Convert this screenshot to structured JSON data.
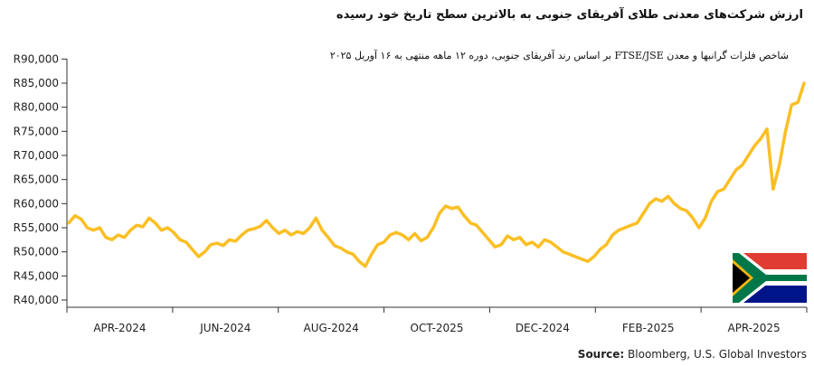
{
  "chart_data": {
    "type": "line",
    "title": "ارزش شرکت‌های معدنی طلای آفریقای جنوبی به بالاترین سطح تاریخ خود رسیده",
    "subtitle_lines": [
      "شاخص فلزات گرانبها و معدن FTSE/JSE بر اساس رند آفریقای جنوبی، دوره ۱۲ ماهه منتهی به ۱۶ آوریل ۲۰۲۵"
    ],
    "source_label": "Source:",
    "source_text": "Bloomberg, U.S. Global Investors",
    "ylim": [
      38500,
      91000
    ],
    "y_ticks": [
      40000,
      45000,
      50000,
      55000,
      60000,
      65000,
      70000,
      75000,
      80000,
      85000,
      90000
    ],
    "y_tick_labels": [
      "R40,000",
      "R45,000",
      "R50,000",
      "R55,000",
      "R60,000",
      "R65,000",
      "R70,000",
      "R75,000",
      "R80,000",
      "R85,000",
      "R90,000"
    ],
    "x_tick_labels": [
      "APR-2024",
      "JUN-2024",
      "AUG-2024",
      "OCT-2025",
      "DEC-2024",
      "FEB-2025",
      "APR-2025"
    ],
    "series": [
      {
        "color": "#fbbf24",
        "values": [
          56000,
          57500,
          56800,
          55000,
          54500,
          55000,
          53000,
          52500,
          53500,
          53000,
          54500,
          55500,
          55200,
          57000,
          56000,
          54500,
          55000,
          54000,
          52500,
          52000,
          50500,
          49000,
          50000,
          51500,
          51800,
          51300,
          52500,
          52200,
          53500,
          54500,
          54800,
          55300,
          56500,
          55000,
          53800,
          54500,
          53500,
          54200,
          53800,
          55000,
          57000,
          54500,
          53000,
          51300,
          50800,
          50000,
          49500,
          48000,
          47000,
          49500,
          51500,
          52000,
          53500,
          54000,
          53500,
          52500,
          53800,
          52300,
          53000,
          55000,
          58000,
          59500,
          59000,
          59300,
          57500,
          56000,
          55500,
          54000,
          52500,
          51000,
          51500,
          53300,
          52500,
          53000,
          51500,
          52000,
          51000,
          52500,
          52000,
          51000,
          50000,
          49500,
          49000,
          48500,
          48000,
          49000,
          50500,
          51500,
          53500,
          54500,
          55000,
          55500,
          56000,
          58000,
          60000,
          61000,
          60500,
          61500,
          60000,
          59000,
          58500,
          57000,
          55000,
          57000,
          60500,
          62500,
          63000,
          65000,
          67000,
          68000,
          70000,
          72000,
          73500,
          75500,
          63000,
          68000,
          75000,
          80500,
          81000,
          85000
        ]
      }
    ]
  },
  "flag": {
    "colors": {
      "red": "#e03c31",
      "blue": "#001489",
      "green": "#007749",
      "black": "#000000",
      "gold": "#ffb612",
      "white": "#ffffff"
    }
  }
}
